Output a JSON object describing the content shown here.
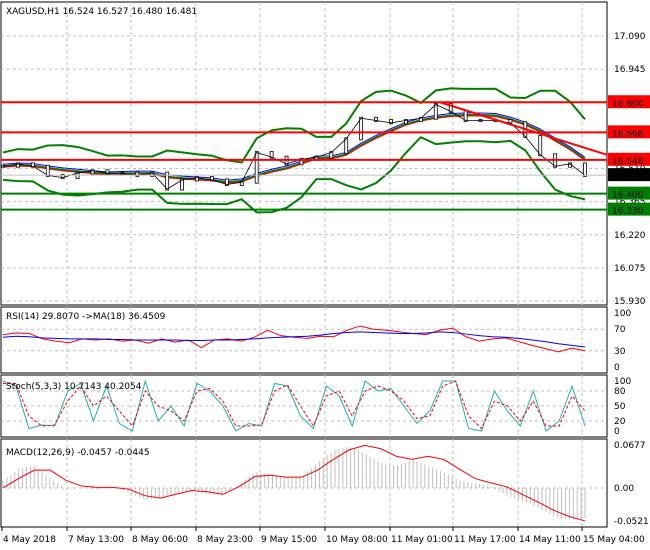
{
  "chart_data": [
    {
      "type": "candlestick",
      "title": "XAGUSD,H1  16.524 16.527 16.480 16.481",
      "symbol": "XAGUSD",
      "timeframe": "H1",
      "ohlc": {
        "open": 16.524,
        "high": 16.527,
        "low": 16.48,
        "close": 16.481
      },
      "yticks": [
        "17.090",
        "16.945",
        "16.510",
        "16.365",
        "16.220",
        "16.075",
        "15.930"
      ],
      "ylim": [
        15.93,
        17.15
      ],
      "levels": [
        {
          "value": 16.8,
          "label": "16.800",
          "color": "#ff0000"
        },
        {
          "value": 16.668,
          "label": "16.668",
          "color": "#ff0000"
        },
        {
          "value": 16.548,
          "label": "16.548",
          "color": "#ff0000"
        },
        {
          "value": 16.4,
          "label": "16.400",
          "color": "#008000"
        },
        {
          "value": 16.33,
          "label": "16.330",
          "color": "#008000"
        }
      ],
      "current_price": {
        "value": 16.481,
        "label": "16.481"
      },
      "close": [
        16.52,
        16.53,
        16.52,
        16.48,
        16.47,
        16.49,
        16.5,
        16.49,
        16.49,
        16.48,
        16.49,
        16.42,
        16.46,
        16.47,
        16.46,
        16.44,
        16.45,
        16.58,
        16.56,
        16.53,
        16.55,
        16.56,
        16.58,
        16.64,
        16.73,
        16.72,
        16.71,
        16.72,
        16.73,
        16.79,
        16.76,
        16.72,
        16.72,
        16.72,
        16.71,
        16.65,
        16.57,
        16.52,
        16.53,
        16.48
      ],
      "trendline": {
        "from": 16.8,
        "to": 16.57,
        "color": "#ff0000"
      }
    },
    {
      "type": "line",
      "title": "RSI(14) 29.8070  ->MA(18) 36.4509",
      "yticks": [
        "100",
        "70",
        "30",
        "0"
      ],
      "ylim": [
        0,
        100
      ],
      "series": [
        {
          "values": [
            60,
            63,
            62,
            52,
            48,
            45,
            52,
            50,
            52,
            48,
            50,
            44,
            52,
            46,
            50,
            36,
            50,
            52,
            48,
            55,
            68,
            58,
            55,
            53,
            57,
            56,
            68,
            76,
            70,
            68,
            65,
            62,
            60,
            68,
            72,
            56,
            48,
            52,
            54,
            47,
            40,
            34,
            28,
            35,
            30
          ],
          "color": "#ff0000"
        },
        {
          "values": [
            55,
            57,
            56,
            54,
            53,
            52,
            52,
            52,
            51,
            51,
            50,
            50,
            50,
            50,
            49,
            49,
            50,
            50,
            51,
            52,
            54,
            55,
            56,
            57,
            59,
            62,
            64,
            65,
            64,
            63,
            62,
            62,
            63,
            65,
            64,
            61,
            58,
            56,
            55,
            53,
            50,
            47,
            43,
            40,
            37
          ],
          "color": "#0000ff"
        }
      ]
    },
    {
      "type": "line",
      "title": "Stoch(5,3,3) 10.7143 40.2054",
      "yticks": [
        "100",
        "80",
        "50",
        "20",
        "0"
      ],
      "ylim": [
        0,
        100
      ],
      "series": [
        {
          "values": [
            100,
            90,
            5,
            12,
            10,
            80,
            95,
            20,
            90,
            15,
            0,
            100,
            20,
            50,
            10,
            95,
            80,
            50,
            0,
            15,
            10,
            95,
            90,
            30,
            5,
            90,
            70,
            10,
            100,
            80,
            85,
            50,
            15,
            40,
            100,
            100,
            5,
            0,
            80,
            40,
            10,
            80,
            0,
            20,
            90,
            10
          ],
          "color": "#20b2aa"
        },
        {
          "values": [
            95,
            95,
            30,
            10,
            12,
            60,
            90,
            50,
            70,
            40,
            10,
            80,
            50,
            40,
            20,
            80,
            85,
            60,
            10,
            10,
            12,
            80,
            92,
            50,
            10,
            70,
            80,
            30,
            80,
            90,
            80,
            60,
            25,
            30,
            90,
            100,
            30,
            5,
            60,
            50,
            20,
            60,
            10,
            10,
            70,
            40
          ],
          "color": "#ff0000",
          "dashed": true
        }
      ]
    },
    {
      "type": "bar+line",
      "title": "MACD(12,26,9) -0.0457 -0.0445",
      "yticks": [
        "0.0677",
        "0.00",
        "-0.0521"
      ],
      "ylim": [
        -0.0521,
        0.0677
      ],
      "histogram": [
        0.012,
        0.03,
        0.035,
        0.015,
        0.0,
        0.0,
        -0.002,
        0.0,
        -0.008,
        -0.018,
        -0.015,
        -0.008,
        -0.004,
        -0.01,
        -0.012,
        0.005,
        0.025,
        0.022,
        0.016,
        0.018,
        0.04,
        0.06,
        0.065,
        0.055,
        0.04,
        0.035,
        0.045,
        0.035,
        0.025,
        0.012,
        0.008,
        0.002,
        -0.012,
        -0.02,
        -0.03,
        -0.045,
        -0.05,
        -0.048
      ],
      "signal": [
        0.0,
        0.015,
        0.028,
        0.028,
        0.012,
        0.003,
        0.001,
        0.001,
        -0.002,
        -0.012,
        -0.016,
        -0.01,
        -0.004,
        -0.006,
        -0.01,
        0.002,
        0.018,
        0.02,
        0.017,
        0.017,
        0.028,
        0.045,
        0.06,
        0.067,
        0.062,
        0.05,
        0.045,
        0.05,
        0.045,
        0.03,
        0.015,
        0.008,
        0.002,
        -0.01,
        -0.022,
        -0.035,
        -0.045,
        -0.052
      ],
      "color": "#ff0000"
    }
  ],
  "xticks": [
    "4 May 2018",
    "7 May 13:00",
    "8 May 06:00",
    "8 May 23:00",
    "9 May 15:00",
    "10 May 08:00",
    "11 May 01:00",
    "11 May 17:00",
    "14 May 11:00",
    "15 May 04:00"
  ]
}
